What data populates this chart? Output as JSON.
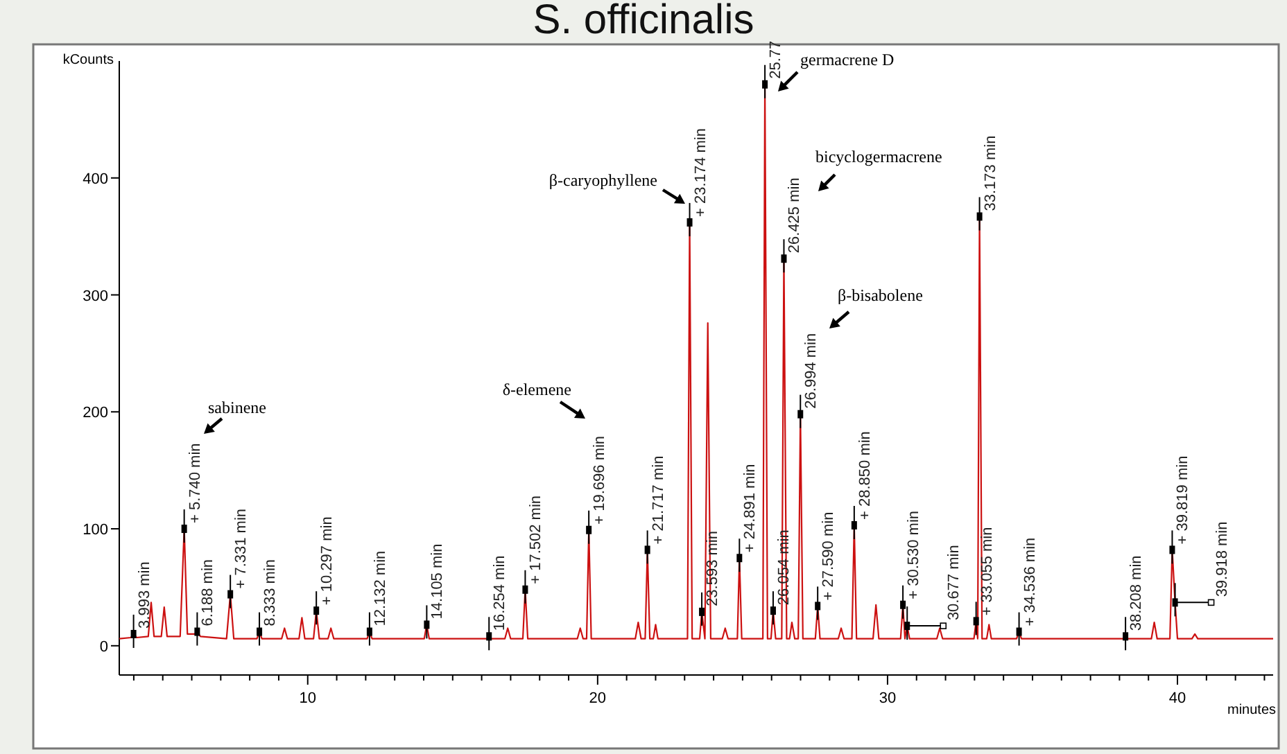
{
  "chart_data": {
    "type": "line",
    "title": "S. officinalis",
    "xlabel": "minutes",
    "ylabel": "kCounts",
    "xlim": [
      3.5,
      43.3
    ],
    "ylim": [
      -25,
      500
    ],
    "xticks": [
      {
        "value": 4,
        "label": null
      },
      {
        "value": 5,
        "label": null
      },
      {
        "value": 6,
        "label": null
      },
      {
        "value": 7,
        "label": null
      },
      {
        "value": 8,
        "label": null
      },
      {
        "value": 9,
        "label": null
      },
      10,
      {
        "value": 11,
        "label": null
      },
      {
        "value": 12,
        "label": null
      },
      {
        "value": 13,
        "label": null
      },
      {
        "value": 14,
        "label": null
      },
      {
        "value": 15,
        "label": null
      },
      {
        "value": 16,
        "label": null
      },
      {
        "value": 17,
        "label": null
      },
      {
        "value": 18,
        "label": null
      },
      {
        "value": 19,
        "label": null
      },
      20,
      {
        "value": 21,
        "label": null
      },
      {
        "value": 22,
        "label": null
      },
      {
        "value": 23,
        "label": null
      },
      {
        "value": 24,
        "label": null
      },
      {
        "value": 25,
        "label": null
      },
      {
        "value": 26,
        "label": null
      },
      {
        "value": 27,
        "label": null
      },
      {
        "value": 28,
        "label": null
      },
      {
        "value": 29,
        "label": null
      },
      30,
      {
        "value": 31,
        "label": null
      },
      {
        "value": 32,
        "label": null
      },
      {
        "value": 33,
        "label": null
      },
      {
        "value": 34,
        "label": null
      },
      {
        "value": 35,
        "label": null
      },
      {
        "value": 36,
        "label": null
      },
      {
        "value": 37,
        "label": null
      },
      {
        "value": 38,
        "label": null
      },
      {
        "value": 39,
        "label": null
      },
      40,
      {
        "value": 41,
        "label": null
      },
      {
        "value": 42,
        "label": null
      },
      {
        "value": 43,
        "label": null
      }
    ],
    "yticks": [
      0,
      100,
      200,
      300,
      400
    ],
    "grid": false,
    "marker": "none",
    "line_style": "solid",
    "series": [
      {
        "color": "#cc1111",
        "x": [
          3.5,
          3.9,
          3.993,
          4.1,
          4.5,
          4.6,
          4.7,
          4.95,
          5.05,
          5.15,
          5.6,
          5.74,
          5.85,
          6.1,
          6.188,
          6.3,
          7.2,
          7.331,
          7.45,
          8.25,
          8.333,
          8.42,
          9.1,
          9.2,
          9.3,
          9.7,
          9.8,
          9.9,
          10.2,
          10.297,
          10.4,
          10.7,
          10.8,
          10.9,
          12.05,
          12.132,
          12.22,
          14.02,
          14.105,
          14.19,
          16.17,
          16.254,
          16.34,
          16.8,
          16.9,
          17.0,
          17.42,
          17.502,
          17.59,
          19.3,
          19.4,
          19.5,
          19.62,
          19.696,
          19.78,
          21.3,
          21.4,
          21.5,
          21.64,
          21.717,
          21.8,
          21.92,
          22.0,
          22.08,
          23.1,
          23.174,
          23.26,
          23.52,
          23.593,
          23.7,
          23.8,
          23.9,
          24.3,
          24.4,
          24.5,
          24.82,
          24.891,
          24.97,
          25.7,
          25.77,
          25.86,
          25.98,
          26.054,
          26.14,
          26.35,
          26.425,
          26.52,
          26.62,
          26.7,
          26.8,
          26.92,
          26.994,
          27.08,
          27.51,
          27.59,
          27.67,
          28.3,
          28.4,
          28.5,
          28.77,
          28.85,
          28.93,
          29.5,
          29.6,
          29.7,
          30.45,
          30.53,
          30.6,
          30.677,
          30.76,
          31.7,
          31.8,
          31.9,
          32.98,
          33.055,
          33.11,
          33.173,
          33.26,
          33.42,
          33.5,
          33.58,
          34.45,
          34.536,
          34.62,
          38.13,
          38.208,
          38.29,
          39.1,
          39.2,
          39.3,
          39.74,
          39.819,
          39.918,
          40.0,
          40.5,
          40.6,
          40.7,
          43.3
        ],
        "values": [
          6,
          7,
          10,
          7,
          8,
          37,
          8,
          8,
          33,
          8,
          8,
          100,
          10,
          10,
          12,
          8,
          6,
          44,
          6,
          6,
          12,
          6,
          6,
          15,
          6,
          6,
          24,
          6,
          6,
          30,
          6,
          6,
          15,
          6,
          6,
          12,
          6,
          6,
          18,
          6,
          6,
          8,
          6,
          6,
          15,
          6,
          6,
          48,
          6,
          6,
          15,
          6,
          6,
          99,
          6,
          6,
          20,
          6,
          6,
          82,
          6,
          6,
          18,
          6,
          6,
          362,
          6,
          6,
          29,
          6,
          276,
          6,
          6,
          15,
          6,
          6,
          75,
          6,
          6,
          480,
          6,
          6,
          30,
          6,
          6,
          331,
          6,
          6,
          20,
          6,
          6,
          198,
          6,
          6,
          34,
          6,
          6,
          15,
          6,
          6,
          103,
          6,
          6,
          35,
          6,
          6,
          35,
          6,
          17,
          6,
          6,
          15,
          6,
          6,
          21,
          6,
          367,
          6,
          6,
          18,
          6,
          6,
          12,
          6,
          6,
          8,
          6,
          6,
          20,
          6,
          6,
          82,
          37,
          6,
          6,
          10,
          6,
          6
        ]
      }
    ],
    "annotations": [
      "sabinene",
      "δ-elemene",
      "β-caryophyllene",
      "germacrene D",
      "bicyclogermacrene",
      "β-bisabolene",
      {
        "text": "3.993 min",
        "x": 3.993,
        "y": 10
      },
      {
        "text": "+ 5.740 min",
        "x": 5.74,
        "y": 100
      },
      {
        "text": "6.188 min",
        "x": 6.188,
        "y": 12
      },
      {
        "text": "+ 7.331 min",
        "x": 7.331,
        "y": 44
      },
      {
        "text": "8.333 min",
        "x": 8.333,
        "y": 12
      },
      {
        "text": "+ 10.297 min",
        "x": 10.297,
        "y": 30
      },
      {
        "text": "12.132 min",
        "x": 12.132,
        "y": 12
      },
      {
        "text": "14.105 min",
        "x": 14.105,
        "y": 18
      },
      {
        "text": "16.254 min",
        "x": 16.254,
        "y": 8
      },
      {
        "text": "+ 17.502 min",
        "x": 17.502,
        "y": 48
      },
      {
        "text": "+ 19.696 min",
        "x": 19.696,
        "y": 99
      },
      {
        "text": "+ 21.717 min",
        "x": 21.717,
        "y": 82
      },
      {
        "text": "+ 23.174 min",
        "x": 23.174,
        "y": 362
      },
      {
        "text": "23.593 min",
        "x": 23.593,
        "y": 29
      },
      {
        "text": "+ 24.891 min",
        "x": 24.891,
        "y": 75
      },
      {
        "text": "25.77",
        "x": 25.77,
        "y": 480
      },
      {
        "text": "26.054 min",
        "x": 26.054,
        "y": 30
      },
      {
        "text": "26.425 min",
        "x": 26.425,
        "y": 331
      },
      {
        "text": "26.994 min",
        "x": 26.994,
        "y": 198
      },
      {
        "text": "+ 27.590 min",
        "x": 27.59,
        "y": 34
      },
      {
        "text": "+ 28.850 min",
        "x": 28.85,
        "y": 103
      },
      {
        "text": "+ 30.530 min",
        "x": 30.53,
        "y": 35
      },
      {
        "text": "30.677 min",
        "x": 30.677,
        "y": 17
      },
      {
        "text": "+ 33.055 min",
        "x": 33.055,
        "y": 21
      },
      {
        "text": "33.173 min",
        "x": 33.173,
        "y": 367
      },
      {
        "text": "+ 34.536 min",
        "x": 34.536,
        "y": 12
      },
      {
        "text": "38.208 min",
        "x": 38.208,
        "y": 8
      },
      {
        "text": "+ 39.819 min",
        "x": 39.819,
        "y": 82
      },
      {
        "text": "39.918 min",
        "x": 39.918,
        "y": 37
      }
    ]
  }
}
